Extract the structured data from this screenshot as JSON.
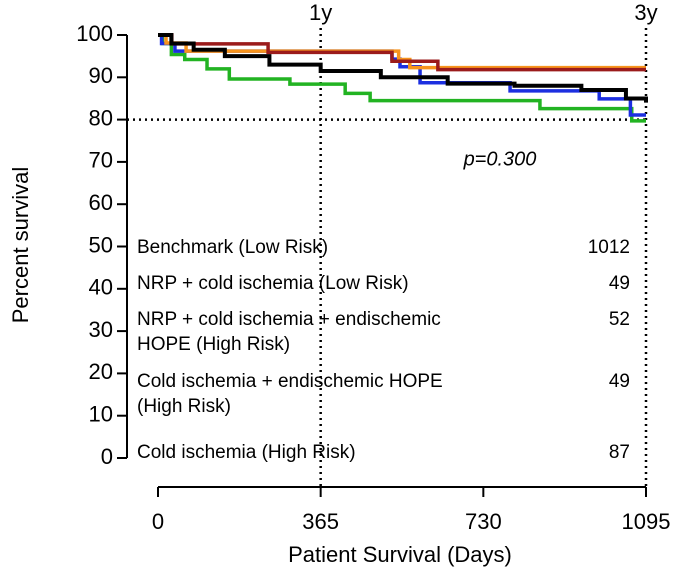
{
  "chart_data": {
    "type": "step",
    "xlabel": "Patient Survival (Days)",
    "ylabel": "Percent survival",
    "xlim": [
      0,
      1095
    ],
    "xticks": [
      0,
      365,
      730,
      1095
    ],
    "ylim": [
      0,
      100
    ],
    "yticks": [
      0,
      10,
      20,
      30,
      40,
      50,
      60,
      70,
      80,
      90,
      100
    ],
    "vlines": [
      {
        "x": 365,
        "label": "1y"
      },
      {
        "x": 1095,
        "label": "3y"
      }
    ],
    "hlines": [
      80
    ],
    "annotation": "p=0.300",
    "series": [
      {
        "name": "Benchmark (Low Risk)",
        "n": 1012,
        "color": "#000000",
        "x": [
          0,
          30,
          80,
          150,
          250,
          365,
          500,
          650,
          800,
          950,
          1050,
          1095
        ],
        "values": [
          100,
          98,
          96.5,
          95,
          93,
          91.5,
          90,
          88.5,
          88,
          87,
          85,
          84
        ]
      },
      {
        "name": "NRP + cold ischemia (Low Risk)",
        "n": 49,
        "color": "#9b1b1b",
        "x": [
          0,
          31,
          247,
          525,
          628,
          1095
        ],
        "values": [
          100,
          97.9,
          95.9,
          93.8,
          91.8,
          91.8
        ]
      },
      {
        "name": "NRP + cold ischemia + endischemic HOPE (High Risk)",
        "n": 52,
        "color": "#f7941d",
        "x": [
          0,
          18,
          63,
          540,
          565,
          1095
        ],
        "values": [
          100,
          98.1,
          96.2,
          94.2,
          92.3,
          92.3
        ]
      },
      {
        "name": "Cold ischemia + endischemic HOPE (High Risk)",
        "n": 49,
        "color": "#1c2fe0",
        "x": [
          0,
          8,
          38,
          525,
          543,
          588,
          790,
          990,
          1060,
          1095
        ],
        "values": [
          100,
          98,
          96.2,
          94.3,
          92.5,
          88.7,
          86.8,
          84.9,
          81.1,
          81.1
        ]
      },
      {
        "name": "Cold ischemia (High Risk)",
        "n": 87,
        "color": "#22b322",
        "x": [
          0,
          10,
          30,
          60,
          110,
          160,
          296,
          420,
          476,
          857,
          1063,
          1095
        ],
        "values": [
          100,
          98,
          95.4,
          94.2,
          92,
          89.6,
          88.4,
          86.2,
          84.5,
          82.6,
          79.7,
          79.7
        ]
      }
    ]
  }
}
